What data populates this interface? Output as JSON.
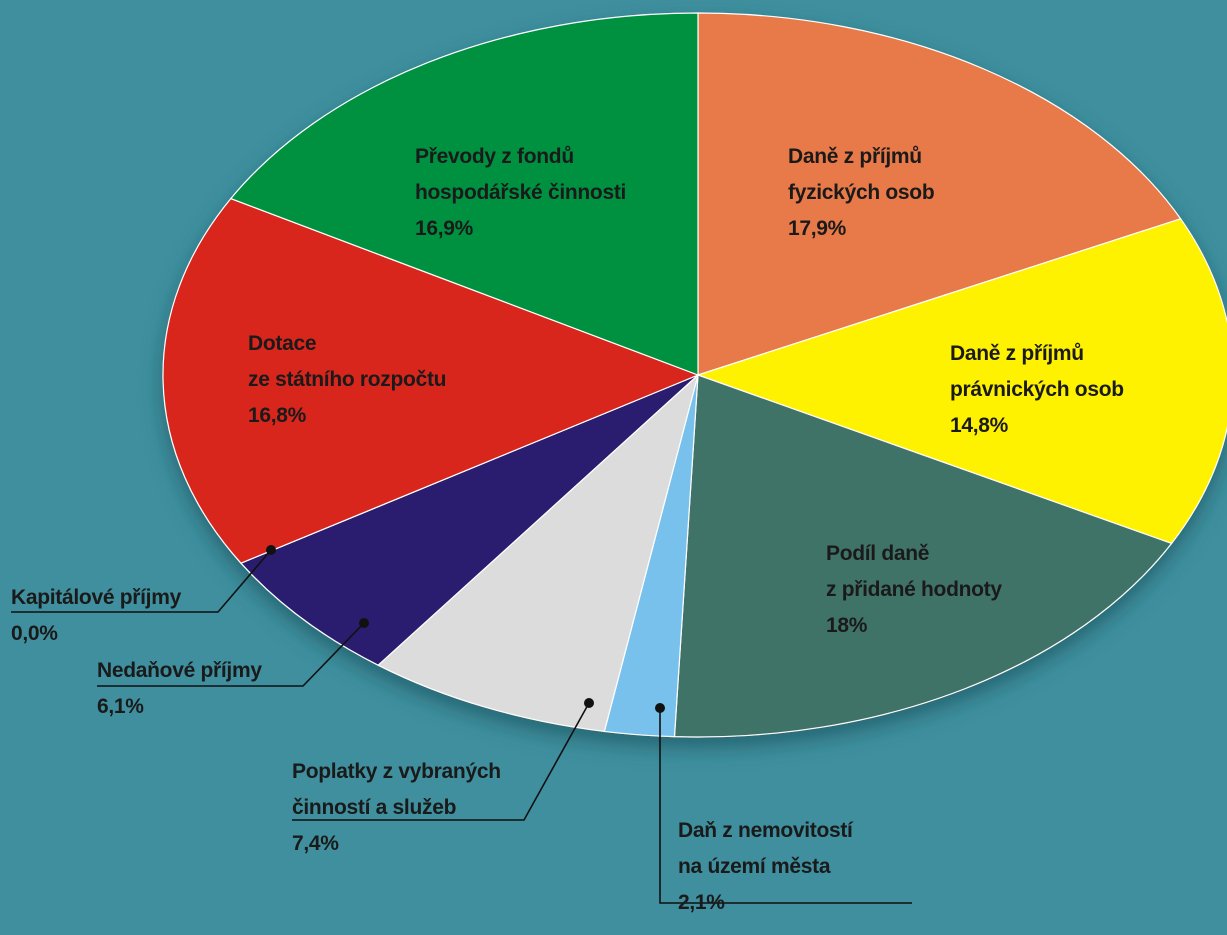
{
  "chart_data": {
    "type": "pie",
    "title": "",
    "unit": "%",
    "slices": [
      {
        "lines": [
          "Daně z příjmů",
          "fyzických osob"
        ],
        "value_label": "17,9%",
        "value": 17.9,
        "color": "#e8794a"
      },
      {
        "lines": [
          "Daně z příjmů",
          "právnických osob"
        ],
        "value_label": "14,8%",
        "value": 14.8,
        "color": "#fff200"
      },
      {
        "lines": [
          "Podíl daně",
          "z přidané hodnoty"
        ],
        "value_label": "18%",
        "value": 18.0,
        "color": "#3f7367"
      },
      {
        "lines": [
          "Daň z nemovitostí",
          "na území města"
        ],
        "value_label": "2,1%",
        "value": 2.1,
        "color": "#77c1ec"
      },
      {
        "lines": [
          "Poplatky z vybraných",
          "činností a služeb"
        ],
        "value_label": "7,4%",
        "value": 7.4,
        "color": "#dcdcdc"
      },
      {
        "lines": [
          "Nedaňové příjmy"
        ],
        "value_label": "6,1%",
        "value": 6.1,
        "color": "#2a1a6e"
      },
      {
        "lines": [
          "Kapitálové příjmy"
        ],
        "value_label": "0,0%",
        "value": 0.0,
        "color": "#e02020"
      },
      {
        "lines": [
          "Dotace",
          "ze státního rozpočtu"
        ],
        "value_label": "16,8%",
        "value": 16.8,
        "color": "#d8251d"
      },
      {
        "lines": [
          "Převody z fondů",
          "hospodářské činnosti"
        ],
        "value_label": "16,9%",
        "value": 16.9,
        "color": "#00913f"
      }
    ]
  }
}
